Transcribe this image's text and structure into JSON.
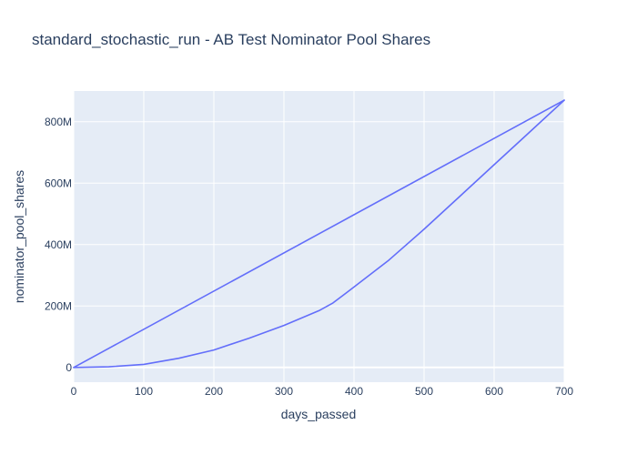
{
  "chart_data": {
    "type": "line",
    "title": "standard_stochastic_run - AB Test Nominator Pool Shares",
    "xlabel": "days_passed",
    "ylabel": "nominator_pool_shares",
    "xlim": [
      0,
      700
    ],
    "ylim": [
      -48000000,
      900000000
    ],
    "x_ticks": [
      0,
      100,
      200,
      300,
      400,
      500,
      600,
      700
    ],
    "x_tick_labels": [
      "0",
      "100",
      "200",
      "300",
      "400",
      "500",
      "600",
      "700"
    ],
    "y_ticks": [
      0,
      200000000,
      400000000,
      600000000,
      800000000
    ],
    "y_tick_labels": [
      "0",
      "200M",
      "400M",
      "600M",
      "800M"
    ],
    "grid": true,
    "legend": "none",
    "colors": {
      "plot_bg": "#e5ecf6",
      "grid": "#ffffff",
      "line": "#636efa",
      "text": "#2a3f5f"
    },
    "series": [
      {
        "x": [
          0,
          700
        ],
        "y": [
          0,
          870000000
        ]
      },
      {
        "x": [
          0,
          50,
          100,
          150,
          200,
          250,
          300,
          350,
          370,
          400,
          450,
          500,
          550,
          600,
          650,
          700
        ],
        "y": [
          0,
          2000000,
          10000000,
          30000000,
          57000000,
          95000000,
          137000000,
          185000000,
          210000000,
          262000000,
          350000000,
          450000000,
          555000000,
          660000000,
          765000000,
          870000000
        ]
      }
    ]
  }
}
